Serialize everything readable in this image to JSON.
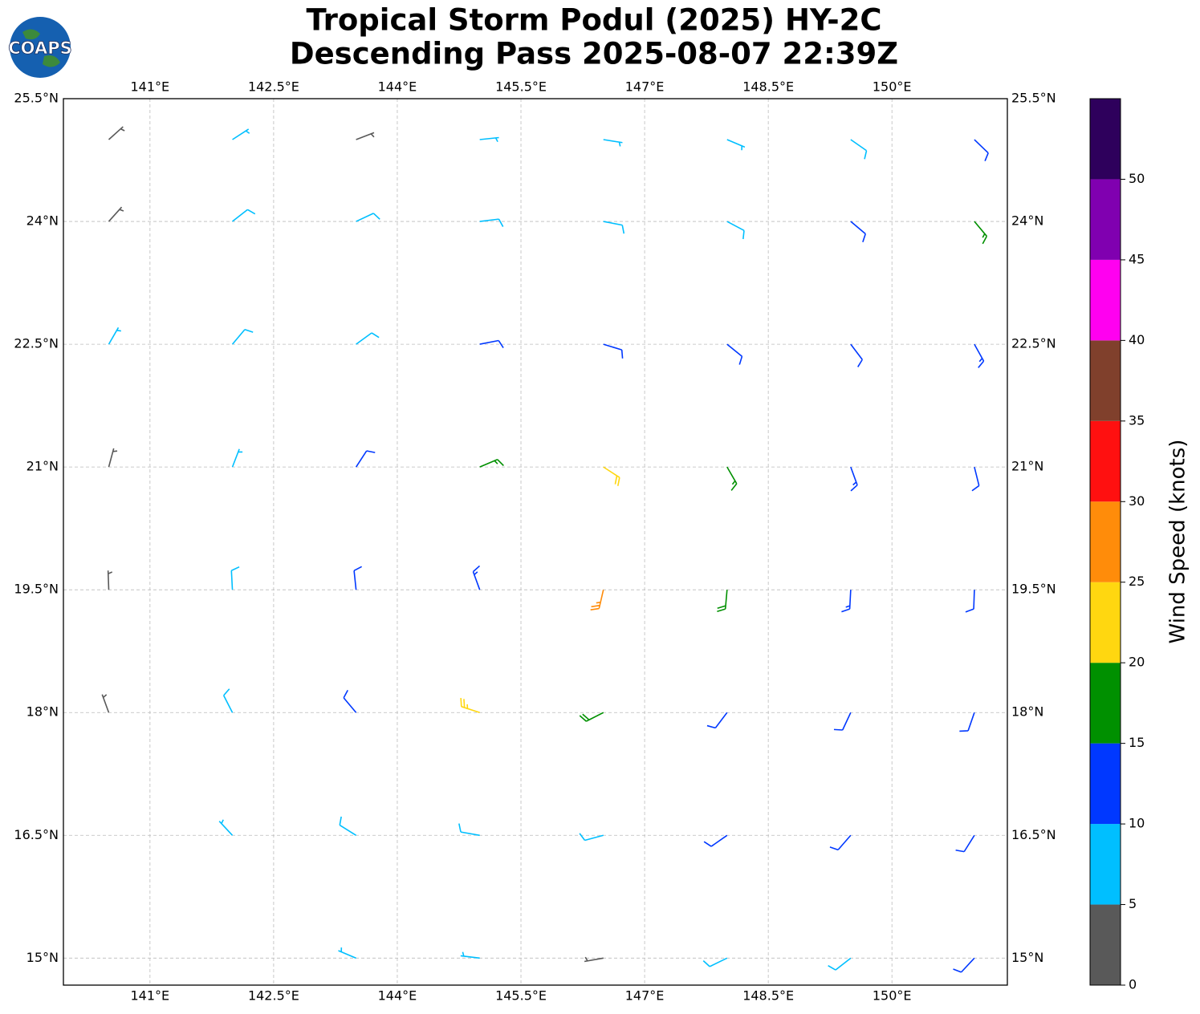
{
  "chart_data": {
    "type": "barbs",
    "title": "Tropical Storm Podul (2025) HY-2C",
    "subtitle": "Descending Pass 2025-08-07 22:39Z",
    "logo": "COAPS",
    "xlim": [
      139.95,
      151.4
    ],
    "ylim": [
      14.67,
      25.5
    ],
    "xticks": [
      {
        "value": 141,
        "label": "141°E"
      },
      {
        "value": 142.5,
        "label": "142.5°E"
      },
      {
        "value": 144,
        "label": "144°E"
      },
      {
        "value": 145.5,
        "label": "145.5°E"
      },
      {
        "value": 147,
        "label": "147°E"
      },
      {
        "value": 148.5,
        "label": "148.5°E"
      },
      {
        "value": 150,
        "label": "150°E"
      }
    ],
    "yticks": [
      {
        "value": 15,
        "label": "15°N"
      },
      {
        "value": 16.5,
        "label": "16.5°N"
      },
      {
        "value": 18,
        "label": "18°N"
      },
      {
        "value": 19.5,
        "label": "19.5°N"
      },
      {
        "value": 21,
        "label": "21°N"
      },
      {
        "value": 22.5,
        "label": "22.5°N"
      },
      {
        "value": 24,
        "label": "24°N"
      },
      {
        "value": 25.5,
        "label": "25.5°N"
      }
    ],
    "grid": true,
    "colorbar": {
      "label": "Wind Speed (knots)",
      "lim": [
        0,
        55
      ],
      "ticks": [
        0,
        5,
        10,
        15,
        20,
        25,
        30,
        35,
        40,
        45,
        50
      ],
      "bounds": [
        0,
        5,
        10,
        15,
        20,
        25,
        30,
        35,
        40,
        45,
        50,
        55
      ],
      "colors": [
        "#595959",
        "#00bfff",
        "#0038ff",
        "#009000",
        "#ffd710",
        "#ff8c0a",
        "#ff1010",
        "#80402c",
        "#ff00f0",
        "#8000b0",
        "#2e005c"
      ]
    },
    "lon": [
      140.5,
      142,
      143.5,
      145,
      146.5,
      148,
      149.5,
      151,
      140.5,
      142,
      143.5,
      145,
      146.5,
      148,
      149.5,
      151,
      140.5,
      142,
      143.5,
      145,
      146.5,
      148,
      149.5,
      151,
      140.5,
      142,
      143.5,
      145,
      146.5,
      148,
      149.5,
      151,
      140.5,
      142,
      143.5,
      145,
      146.5,
      148,
      149.5,
      151,
      140.5,
      142,
      143.5,
      145,
      146.5,
      148,
      149.5,
      151,
      142,
      143.5,
      145,
      146.5,
      148,
      149.5,
      151,
      143.5,
      145,
      146.5,
      148,
      149.5,
      151
    ],
    "lat": [
      25,
      25,
      25,
      25,
      25,
      25,
      25,
      25,
      24,
      24,
      24,
      24,
      24,
      24,
      24,
      24,
      22.5,
      22.5,
      22.5,
      22.5,
      22.5,
      22.5,
      22.5,
      22.5,
      21,
      21,
      21,
      21,
      21,
      21,
      21,
      21,
      19.5,
      19.5,
      19.5,
      19.5,
      19.5,
      19.5,
      19.5,
      19.5,
      18,
      18,
      18,
      18,
      18,
      18,
      18,
      18,
      16.5,
      16.5,
      16.5,
      16.5,
      16.5,
      16.5,
      16.5,
      15,
      15,
      15,
      15,
      15,
      15
    ],
    "speed": [
      3,
      5,
      4,
      7,
      6,
      7,
      9,
      12,
      3,
      8,
      8,
      8,
      9,
      9,
      12,
      16,
      7,
      8,
      9,
      12,
      12,
      12,
      12,
      13,
      4,
      7,
      11,
      16,
      22,
      16,
      14,
      12,
      3,
      8,
      12,
      14,
      26,
      18,
      13,
      12,
      4,
      8,
      10,
      24,
      18,
      12,
      11,
      12,
      6,
      8,
      9,
      9,
      11,
      12,
      11,
      7,
      7,
      4,
      8,
      9,
      12
    ],
    "direction": [
      48,
      57,
      69,
      84,
      99,
      113,
      125,
      134,
      42,
      52,
      65,
      83,
      101,
      118,
      130,
      140,
      30,
      40,
      54,
      79,
      107,
      129,
      143,
      151,
      15,
      21,
      33,
      67,
      123,
      150,
      160,
      166,
      358,
      357,
      354,
      340,
      193,
      185,
      183,
      182,
      340,
      333,
      320,
      288,
      243,
      217,
      205,
      199,
      317,
      302,
      280,
      255,
      235,
      221,
      212,
      293,
      277,
      260,
      244,
      232,
      223
    ]
  }
}
